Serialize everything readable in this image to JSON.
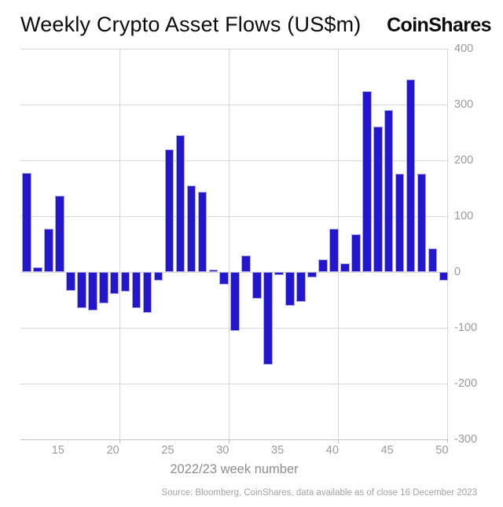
{
  "header": {
    "title": "Weekly Crypto Asset Flows (US$m)",
    "brand": "CoinShares"
  },
  "chart_data": {
    "type": "bar",
    "title": "Weekly Crypto Asset Flows (US$m)",
    "xlabel": "2022/23 week number",
    "ylabel": "",
    "x": [
      12,
      13,
      14,
      15,
      16,
      17,
      18,
      19,
      20,
      21,
      22,
      23,
      24,
      25,
      26,
      27,
      28,
      29,
      30,
      31,
      32,
      33,
      34,
      35,
      36,
      37,
      38,
      39,
      40,
      41,
      42,
      43,
      44,
      45,
      46,
      47,
      48,
      49,
      50
    ],
    "values": [
      178,
      8,
      77,
      137,
      -34,
      -65,
      -69,
      -56,
      -40,
      -35,
      -65,
      -73,
      -15,
      220,
      245,
      155,
      143,
      4,
      -22,
      -106,
      29,
      -48,
      -166,
      -6,
      -61,
      -54,
      -10,
      23,
      77,
      15,
      67,
      324,
      260,
      290,
      176,
      345,
      176,
      42,
      -15
    ],
    "x_tick_labels": [
      "15",
      "20",
      "25",
      "30",
      "35",
      "40",
      "45",
      "50"
    ],
    "x_tick_values": [
      15,
      20,
      25,
      30,
      35,
      40,
      45,
      50
    ],
    "y_tick_labels": [
      "400",
      "300",
      "200",
      "100",
      "0",
      "-100",
      "-200",
      "-300"
    ],
    "y_tick_values": [
      400,
      300,
      200,
      100,
      0,
      -100,
      -200,
      -300
    ],
    "ylim": [
      -300,
      400
    ],
    "grid": true,
    "legend_position": "none",
    "colors": {
      "bar_fill": "#2217cd",
      "bar_edge": "#aea8e0",
      "gridline": "#d8d8d8",
      "axis_line": "#c3c3c3",
      "tick_text": "#9a9a9a",
      "axis_label_text": "#8e8e8e",
      "source_text": "#a3a3a3",
      "title_text": "#0b0b0b"
    }
  },
  "footer": {
    "source": "Source: Bloomberg, CoinShares, data available as of close 16 December 2023"
  }
}
